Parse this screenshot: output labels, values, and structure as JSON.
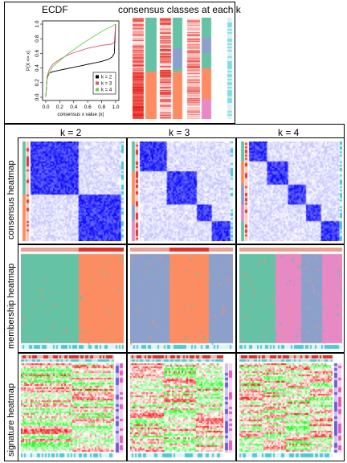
{
  "top_panel": {
    "ecdf_title": "ECDF",
    "consensus_title": "consensus classes at each k"
  },
  "chart_data": [
    {
      "type": "line",
      "name": "ecdf",
      "xlabel": "consensus x value (x)",
      "ylabel": "P(X <= x)",
      "xlim": [
        0,
        1
      ],
      "ylim": [
        0,
        1
      ],
      "xticks": [
        "0.0",
        "0.2",
        "0.4",
        "0.6",
        "0.8",
        "1.0"
      ],
      "yticks": [
        "0.0",
        "0.2",
        "0.4",
        "0.6",
        "0.8",
        "1.0"
      ],
      "legend_position": "bottom-right",
      "series": [
        {
          "name": "k = 2",
          "color": "#000000",
          "x": [
            0.0,
            0.02,
            0.05,
            0.1,
            0.2,
            0.3,
            0.4,
            0.5,
            0.6,
            0.7,
            0.8,
            0.9,
            0.95,
            0.98,
            1.0
          ],
          "y": [
            0.0,
            0.28,
            0.33,
            0.35,
            0.37,
            0.39,
            0.41,
            0.43,
            0.45,
            0.47,
            0.49,
            0.52,
            0.55,
            0.6,
            1.0
          ]
        },
        {
          "name": "k = 3",
          "color": "#df536b",
          "x": [
            0.0,
            0.02,
            0.05,
            0.1,
            0.2,
            0.3,
            0.4,
            0.5,
            0.6,
            0.7,
            0.8,
            0.9,
            0.95,
            0.98,
            1.0
          ],
          "y": [
            0.0,
            0.28,
            0.38,
            0.45,
            0.52,
            0.57,
            0.61,
            0.64,
            0.67,
            0.69,
            0.71,
            0.72,
            0.73,
            0.75,
            1.0
          ]
        },
        {
          "name": "k = 4",
          "color": "#61d04f",
          "x": [
            0.0,
            0.02,
            0.05,
            0.1,
            0.2,
            0.3,
            0.4,
            0.5,
            0.6,
            0.7,
            0.8,
            0.9,
            0.95,
            0.98,
            1.0
          ],
          "y": [
            0.0,
            0.25,
            0.33,
            0.42,
            0.5,
            0.58,
            0.65,
            0.72,
            0.78,
            0.84,
            0.9,
            0.95,
            0.97,
            0.99,
            1.0
          ]
        }
      ]
    },
    {
      "type": "heatmap",
      "name": "consensus-classes",
      "columns": [
        "k = 2",
        "k = 3",
        "k = 4"
      ],
      "class_colors": [
        "#66c2a5",
        "#fc8d62",
        "#8da0cb",
        "#e78ac3"
      ]
    },
    {
      "type": "heatmap",
      "name": "k-grid",
      "columns": [
        "k = 2",
        "k = 3",
        "k = 4"
      ],
      "rows": [
        "consensus heatmap",
        "membership heatmap",
        "signature heatmap"
      ],
      "consensus_colors": {
        "low": "#ffffff",
        "high": "#0000ff"
      },
      "membership_colors": [
        "#66c2a5",
        "#fc8d62",
        "#8da0cb",
        "#e78ac3"
      ],
      "signature_colors": {
        "low": "#00ff00",
        "mid": "#ffffff",
        "high": "#ff0000"
      }
    }
  ]
}
